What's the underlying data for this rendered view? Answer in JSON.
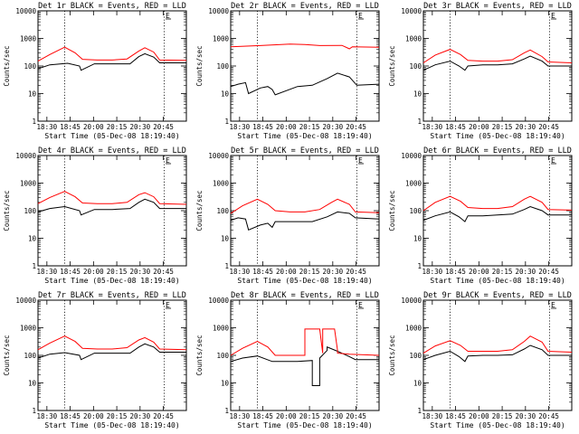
{
  "chart_data": [
    {
      "type": "line",
      "title": "Det 1r BLACK = Events, RED = LLD",
      "xlabel": "Start Time (05-Dec-08 18:19:40)",
      "ylabel": "Counts/sec",
      "x_ticks": [
        "18:30",
        "18:45",
        "20:00",
        "20:15",
        "20:30",
        "20:45"
      ],
      "y_ticks": [
        "1",
        "10",
        "100",
        "1000",
        "10000"
      ],
      "ylim": [
        1,
        10000
      ],
      "y_scale": "log",
      "marker_label": "E",
      "series": [
        {
          "name": "Events",
          "color": "#000000",
          "x": [
            0,
            0.08,
            0.2,
            0.28,
            0.29,
            0.38,
            0.5,
            0.62,
            0.68,
            0.72,
            0.78,
            0.82,
            1.0
          ],
          "y": [
            80,
            110,
            125,
            100,
            70,
            120,
            120,
            120,
            220,
            280,
            210,
            130,
            130
          ]
        },
        {
          "name": "LLD",
          "color": "#ff0000",
          "x": [
            0,
            0.08,
            0.18,
            0.25,
            0.3,
            0.4,
            0.5,
            0.6,
            0.68,
            0.72,
            0.78,
            0.82,
            1.0
          ],
          "y": [
            150,
            260,
            480,
            300,
            175,
            165,
            165,
            180,
            350,
            460,
            320,
            165,
            160
          ]
        }
      ]
    },
    {
      "type": "line",
      "title": "Det 2r BLACK = Events, RED = LLD",
      "xlabel": "Start Time (05-Dec-08 18:19:40)",
      "ylabel": "Counts/sec",
      "x_ticks": [
        "18:30",
        "18:45",
        "20:00",
        "20:15",
        "20:30",
        "20:45"
      ],
      "y_ticks": [
        "1",
        "10",
        "100",
        "1000",
        "10000"
      ],
      "ylim": [
        1,
        10000
      ],
      "y_scale": "log",
      "marker_label": "E",
      "series": [
        {
          "name": "Events",
          "color": "#000000",
          "x": [
            0,
            0.05,
            0.1,
            0.12,
            0.2,
            0.25,
            0.28,
            0.3,
            0.45,
            0.55,
            0.65,
            0.72,
            0.8,
            0.85,
            1.0
          ],
          "y": [
            18,
            22,
            25,
            10,
            16,
            18,
            14,
            9,
            18,
            20,
            35,
            55,
            40,
            20,
            22
          ]
        },
        {
          "name": "LLD",
          "color": "#ff0000",
          "x": [
            0,
            0.2,
            0.4,
            0.5,
            0.6,
            0.75,
            0.8,
            0.82,
            1.0
          ],
          "y": [
            500,
            550,
            620,
            600,
            550,
            560,
            420,
            500,
            480
          ]
        }
      ]
    },
    {
      "type": "line",
      "title": "Det 3r BLACK = Events, RED = LLD",
      "xlabel": "Start Time (05-Dec-08 18:19:40)",
      "ylabel": "Counts/sec",
      "x_ticks": [
        "18:30",
        "18:45",
        "20:00",
        "20:15",
        "20:30",
        "20:45"
      ],
      "y_ticks": [
        "1",
        "10",
        "100",
        "1000",
        "10000"
      ],
      "ylim": [
        1,
        10000
      ],
      "y_scale": "log",
      "marker_label": "E",
      "series": [
        {
          "name": "Events",
          "color": "#000000",
          "x": [
            0,
            0.08,
            0.18,
            0.24,
            0.28,
            0.3,
            0.4,
            0.5,
            0.6,
            0.68,
            0.72,
            0.8,
            0.84,
            1.0
          ],
          "y": [
            70,
            110,
            150,
            100,
            70,
            100,
            110,
            110,
            120,
            180,
            230,
            150,
            100,
            100
          ]
        },
        {
          "name": "LLD",
          "color": "#ff0000",
          "x": [
            0,
            0.08,
            0.18,
            0.25,
            0.3,
            0.4,
            0.5,
            0.6,
            0.68,
            0.72,
            0.8,
            0.84,
            1.0
          ],
          "y": [
            130,
            250,
            400,
            260,
            160,
            150,
            150,
            170,
            300,
            380,
            220,
            140,
            130
          ]
        }
      ]
    },
    {
      "type": "line",
      "title": "Det 4r BLACK = Events, RED = LLD",
      "xlabel": "Start Time (05-Dec-08 18:19:40)",
      "ylabel": "Counts/sec",
      "x_ticks": [
        "18:30",
        "18:45",
        "20:00",
        "20:15",
        "20:30",
        "20:45"
      ],
      "y_ticks": [
        "1",
        "10",
        "100",
        "1000",
        "10000"
      ],
      "ylim": [
        1,
        10000
      ],
      "y_scale": "log",
      "marker_label": "E",
      "series": [
        {
          "name": "Events",
          "color": "#000000",
          "x": [
            0,
            0.08,
            0.18,
            0.28,
            0.29,
            0.38,
            0.5,
            0.62,
            0.68,
            0.72,
            0.78,
            0.82,
            1.0
          ],
          "y": [
            90,
            120,
            140,
            100,
            70,
            110,
            110,
            120,
            200,
            260,
            200,
            120,
            120
          ]
        },
        {
          "name": "LLD",
          "color": "#ff0000",
          "x": [
            0,
            0.08,
            0.18,
            0.25,
            0.3,
            0.4,
            0.5,
            0.6,
            0.68,
            0.72,
            0.78,
            0.82,
            1.0
          ],
          "y": [
            180,
            300,
            500,
            320,
            190,
            180,
            180,
            200,
            380,
            450,
            320,
            180,
            170
          ]
        }
      ]
    },
    {
      "type": "line",
      "title": "Det 5r BLACK = Events, RED = LLD",
      "xlabel": "Start Time (05-Dec-08 18:19:40)",
      "ylabel": "Counts/sec",
      "x_ticks": [
        "18:30",
        "18:45",
        "20:00",
        "20:15",
        "20:30",
        "20:45"
      ],
      "y_ticks": [
        "1",
        "10",
        "100",
        "1000",
        "10000"
      ],
      "ylim": [
        1,
        10000
      ],
      "y_scale": "log",
      "marker_label": "E",
      "series": [
        {
          "name": "Events",
          "color": "#000000",
          "x": [
            0,
            0.05,
            0.1,
            0.12,
            0.2,
            0.25,
            0.28,
            0.3,
            0.45,
            0.55,
            0.65,
            0.72,
            0.8,
            0.84,
            1.0
          ],
          "y": [
            45,
            55,
            50,
            20,
            30,
            35,
            25,
            40,
            40,
            40,
            60,
            90,
            80,
            55,
            50
          ]
        },
        {
          "name": "LLD",
          "color": "#ff0000",
          "x": [
            0,
            0.08,
            0.18,
            0.25,
            0.3,
            0.4,
            0.5,
            0.6,
            0.68,
            0.72,
            0.8,
            0.84,
            1.0
          ],
          "y": [
            80,
            150,
            260,
            170,
            100,
            90,
            90,
            110,
            200,
            260,
            170,
            90,
            85
          ]
        }
      ]
    },
    {
      "type": "line",
      "title": "Det 6r BLACK = Events, RED = LLD",
      "xlabel": "Start Time (05-Dec-08 18:19:40)",
      "ylabel": "Counts/sec",
      "x_ticks": [
        "18:30",
        "18:45",
        "20:00",
        "20:15",
        "20:30",
        "20:45"
      ],
      "y_ticks": [
        "1",
        "10",
        "100",
        "1000",
        "10000"
      ],
      "ylim": [
        1,
        10000
      ],
      "y_scale": "log",
      "marker_label": "E",
      "series": [
        {
          "name": "Events",
          "color": "#000000",
          "x": [
            0,
            0.08,
            0.18,
            0.24,
            0.28,
            0.3,
            0.4,
            0.5,
            0.6,
            0.68,
            0.72,
            0.8,
            0.84,
            1.0
          ],
          "y": [
            45,
            65,
            90,
            60,
            40,
            65,
            65,
            70,
            75,
            110,
            140,
            100,
            70,
            70
          ]
        },
        {
          "name": "LLD",
          "color": "#ff0000",
          "x": [
            0,
            0.08,
            0.18,
            0.25,
            0.3,
            0.4,
            0.5,
            0.6,
            0.68,
            0.72,
            0.8,
            0.84,
            1.0
          ],
          "y": [
            100,
            200,
            330,
            220,
            130,
            120,
            120,
            140,
            260,
            330,
            200,
            110,
            105
          ]
        }
      ]
    },
    {
      "type": "line",
      "title": "Det 7r BLACK = Events, RED = LLD",
      "xlabel": "Start Time (05-Dec-08 18:19:40)",
      "ylabel": "Counts/sec",
      "x_ticks": [
        "18:30",
        "18:45",
        "20:00",
        "20:15",
        "20:30",
        "20:45"
      ],
      "y_ticks": [
        "1",
        "10",
        "100",
        "1000",
        "10000"
      ],
      "ylim": [
        1,
        10000
      ],
      "y_scale": "log",
      "marker_label": "E",
      "series": [
        {
          "name": "Events",
          "color": "#000000",
          "x": [
            0,
            0.08,
            0.18,
            0.28,
            0.29,
            0.38,
            0.5,
            0.62,
            0.68,
            0.72,
            0.78,
            0.82,
            1.0
          ],
          "y": [
            80,
            110,
            125,
            100,
            70,
            120,
            120,
            120,
            200,
            260,
            200,
            130,
            130
          ]
        },
        {
          "name": "LLD",
          "color": "#ff0000",
          "x": [
            0,
            0.08,
            0.18,
            0.25,
            0.3,
            0.4,
            0.5,
            0.6,
            0.68,
            0.72,
            0.78,
            0.82,
            1.0
          ],
          "y": [
            160,
            280,
            500,
            320,
            180,
            170,
            170,
            190,
            360,
            440,
            300,
            170,
            160
          ]
        }
      ]
    },
    {
      "type": "line",
      "title": "Det 8r BLACK = Events, RED = LLD",
      "xlabel": "Start Time (05-Dec-08 18:19:40)",
      "ylabel": "Counts/sec",
      "x_ticks": [
        "18:30",
        "18:45",
        "20:00",
        "20:15",
        "20:30",
        "20:45"
      ],
      "y_ticks": [
        "1",
        "10",
        "100",
        "1000",
        "10000"
      ],
      "ylim": [
        1,
        10000
      ],
      "y_scale": "log",
      "marker_label": "E",
      "series": [
        {
          "name": "Events",
          "color": "#000000",
          "x": [
            0,
            0.08,
            0.18,
            0.28,
            0.3,
            0.45,
            0.55,
            0.55,
            0.6,
            0.6,
            0.65,
            0.65,
            0.72,
            0.8,
            0.84,
            1.0
          ],
          "y": [
            60,
            80,
            95,
            60,
            60,
            60,
            65,
            8,
            8,
            80,
            150,
            200,
            140,
            90,
            70,
            70
          ]
        },
        {
          "name": "LLD",
          "color": "#ff0000",
          "x": [
            0,
            0.08,
            0.18,
            0.25,
            0.3,
            0.45,
            0.5,
            0.5,
            0.6,
            0.62,
            0.62,
            0.7,
            0.72,
            0.72,
            0.8,
            1.0
          ],
          "y": [
            100,
            180,
            320,
            200,
            100,
            100,
            100,
            900,
            900,
            120,
            900,
            900,
            150,
            120,
            110,
            100
          ]
        }
      ]
    },
    {
      "type": "line",
      "title": "Det 9r BLACK = Events, RED = LLD",
      "xlabel": "Start Time (05-Dec-08 18:19:40)",
      "ylabel": "Counts/sec",
      "x_ticks": [
        "18:30",
        "18:45",
        "20:00",
        "20:15",
        "20:30",
        "20:45"
      ],
      "y_ticks": [
        "1",
        "10",
        "100",
        "1000",
        "10000"
      ],
      "ylim": [
        1,
        10000
      ],
      "y_scale": "log",
      "marker_label": "E",
      "series": [
        {
          "name": "Events",
          "color": "#000000",
          "x": [
            0,
            0.08,
            0.18,
            0.24,
            0.28,
            0.3,
            0.4,
            0.5,
            0.6,
            0.68,
            0.72,
            0.8,
            0.84,
            1.0
          ],
          "y": [
            70,
            100,
            140,
            90,
            60,
            95,
            100,
            100,
            105,
            170,
            230,
            160,
            100,
            100
          ]
        },
        {
          "name": "LLD",
          "color": "#ff0000",
          "x": [
            0,
            0.08,
            0.18,
            0.25,
            0.3,
            0.4,
            0.5,
            0.6,
            0.68,
            0.72,
            0.8,
            0.84,
            1.0
          ],
          "y": [
            120,
            220,
            340,
            230,
            140,
            140,
            140,
            160,
            320,
            500,
            300,
            140,
            130
          ]
        }
      ]
    }
  ]
}
